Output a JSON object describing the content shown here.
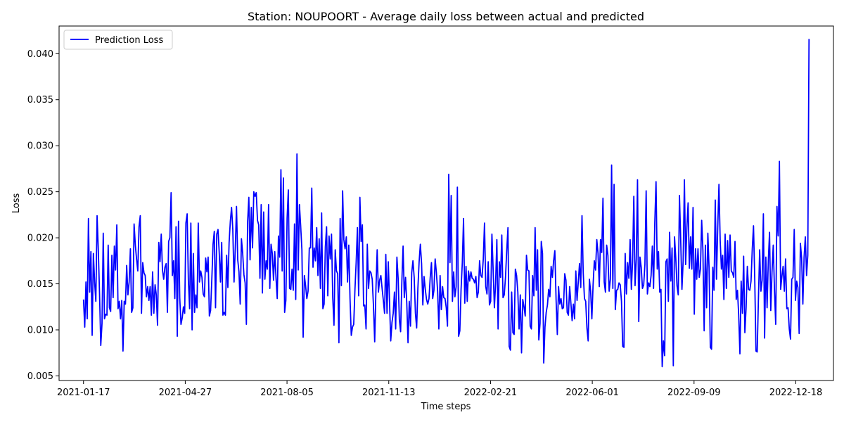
{
  "chart_data": {
    "type": "line",
    "title": "Station: NOUPOORT - Average daily loss between actual and predicted",
    "xlabel": "Time steps",
    "ylabel": "Loss",
    "x_start": "2021-01-17",
    "x_end": "2022-12-31",
    "xlim": [
      "2020-12-24",
      "2023-01-24"
    ],
    "ylim": [
      0.0045,
      0.043
    ],
    "x_ticks": [
      "2021-01-17",
      "2021-04-27",
      "2021-08-05",
      "2021-11-13",
      "2022-02-21",
      "2022-06-01",
      "2022-09-09",
      "2022-12-18"
    ],
    "y_ticks": [
      "0.005",
      "0.010",
      "0.015",
      "0.020",
      "0.025",
      "0.030",
      "0.035",
      "0.040"
    ],
    "grid": false,
    "legend": {
      "position": "top-left",
      "entries": [
        "Prediction Loss"
      ]
    },
    "series": [
      {
        "name": "Prediction Loss",
        "color": "#0000ff",
        "values": [
          0.0133,
          0.0103,
          0.0152,
          0.0112,
          0.0221,
          0.0141,
          0.0185,
          0.0094,
          0.0183,
          0.0152,
          0.0131,
          0.0224,
          0.0187,
          0.0139,
          0.0083,
          0.0107,
          0.0205,
          0.0112,
          0.0117,
          0.0116,
          0.0192,
          0.0124,
          0.012,
          0.0181,
          0.0135,
          0.0191,
          0.0165,
          0.0214,
          0.0123,
          0.0131,
          0.0112,
          0.0132,
          0.0077,
          0.0131,
          0.0128,
          0.017,
          0.0138,
          0.0152,
          0.0188,
          0.0119,
          0.0124,
          0.0215,
          0.0192,
          0.0177,
          0.0164,
          0.0212,
          0.0224,
          0.0118,
          0.0173,
          0.0162,
          0.0159,
          0.0136,
          0.0147,
          0.0132,
          0.0147,
          0.0116,
          0.0163,
          0.0118,
          0.0149,
          0.0138,
          0.0105,
          0.0195,
          0.0174,
          0.0204,
          0.0165,
          0.0155,
          0.0168,
          0.0172,
          0.0119,
          0.0196,
          0.02,
          0.0249,
          0.0159,
          0.0175,
          0.0134,
          0.0212,
          0.0093,
          0.0218,
          0.0135,
          0.0106,
          0.0113,
          0.0125,
          0.0118,
          0.0216,
          0.0226,
          0.0154,
          0.0123,
          0.0216,
          0.01,
          0.0183,
          0.0119,
          0.0138,
          0.0124,
          0.0216,
          0.0152,
          0.0164,
          0.0157,
          0.0139,
          0.0136,
          0.0178,
          0.0163,
          0.0179,
          0.0115,
          0.0121,
          0.0155,
          0.0193,
          0.0207,
          0.0124,
          0.0204,
          0.0209,
          0.0184,
          0.0152,
          0.0195,
          0.0116,
          0.0119,
          0.0116,
          0.0181,
          0.0146,
          0.0195,
          0.0218,
          0.0233,
          0.0209,
          0.0152,
          0.0188,
          0.0234,
          0.0176,
          0.0163,
          0.0128,
          0.0199,
          0.0183,
          0.016,
          0.0151,
          0.0106,
          0.0217,
          0.0244,
          0.0176,
          0.0233,
          0.0189,
          0.025,
          0.0245,
          0.0249,
          0.0219,
          0.0214,
          0.0156,
          0.0236,
          0.014,
          0.0228,
          0.0155,
          0.0175,
          0.0166,
          0.0236,
          0.0145,
          0.0193,
          0.0183,
          0.0154,
          0.0185,
          0.0157,
          0.0134,
          0.0202,
          0.0179,
          0.0274,
          0.0164,
          0.0265,
          0.0119,
          0.0132,
          0.0221,
          0.0252,
          0.0145,
          0.0144,
          0.0166,
          0.0143,
          0.0215,
          0.0133,
          0.0291,
          0.0165,
          0.0236,
          0.0213,
          0.0187,
          0.0092,
          0.0159,
          0.0148,
          0.0134,
          0.0142,
          0.0189,
          0.0189,
          0.0254,
          0.0168,
          0.0189,
          0.0175,
          0.0211,
          0.0159,
          0.0199,
          0.0145,
          0.0227,
          0.0123,
          0.0128,
          0.019,
          0.0212,
          0.0137,
          0.0202,
          0.0177,
          0.0204,
          0.0135,
          0.0105,
          0.0187,
          0.0164,
          0.0161,
          0.0086,
          0.0221,
          0.0148,
          0.0251,
          0.0198,
          0.0188,
          0.0201,
          0.0152,
          0.0192,
          0.0134,
          0.0094,
          0.0103,
          0.0106,
          0.0144,
          0.0174,
          0.0211,
          0.0137,
          0.0244,
          0.0196,
          0.0214,
          0.0126,
          0.0127,
          0.0101,
          0.0193,
          0.0145,
          0.0164,
          0.0162,
          0.0155,
          0.0126,
          0.0087,
          0.0144,
          0.0187,
          0.0141,
          0.0154,
          0.0159,
          0.0145,
          0.0132,
          0.0118,
          0.0182,
          0.0118,
          0.0174,
          0.0131,
          0.0088,
          0.0108,
          0.0118,
          0.0141,
          0.0101,
          0.0179,
          0.0156,
          0.0111,
          0.0098,
          0.0152,
          0.0191,
          0.0135,
          0.0157,
          0.0129,
          0.0086,
          0.0131,
          0.0104,
          0.0162,
          0.0175,
          0.0157,
          0.0118,
          0.0102,
          0.0145,
          0.0174,
          0.0193,
          0.0172,
          0.0127,
          0.0158,
          0.0144,
          0.0133,
          0.0128,
          0.0134,
          0.0157,
          0.0173,
          0.0134,
          0.0143,
          0.0177,
          0.0162,
          0.0142,
          0.0101,
          0.0159,
          0.0122,
          0.0147,
          0.0135,
          0.0134,
          0.0124,
          0.0104,
          0.0269,
          0.0173,
          0.0246,
          0.0131,
          0.0163,
          0.0136,
          0.0147,
          0.0255,
          0.0093,
          0.0099,
          0.0144,
          0.0173,
          0.0221,
          0.0129,
          0.0169,
          0.0131,
          0.0164,
          0.0153,
          0.0163,
          0.0156,
          0.0155,
          0.0151,
          0.0158,
          0.0135,
          0.0141,
          0.0175,
          0.0159,
          0.0157,
          0.0177,
          0.0216,
          0.0147,
          0.0139,
          0.0174,
          0.0127,
          0.0131,
          0.0204,
          0.0165,
          0.0124,
          0.0151,
          0.0198,
          0.0101,
          0.0174,
          0.0157,
          0.0203,
          0.0135,
          0.0138,
          0.0157,
          0.0186,
          0.0211,
          0.0082,
          0.0078,
          0.0141,
          0.0097,
          0.0095,
          0.0166,
          0.0159,
          0.0141,
          0.0101,
          0.0138,
          0.0075,
          0.0133,
          0.0125,
          0.0115,
          0.0181,
          0.0165,
          0.0164,
          0.0104,
          0.0101,
          0.0159,
          0.0137,
          0.0211,
          0.0143,
          0.0187,
          0.0089,
          0.0107,
          0.0196,
          0.0183,
          0.0064,
          0.0103,
          0.0119,
          0.0127,
          0.0144,
          0.0136,
          0.0169,
          0.0157,
          0.0175,
          0.0186,
          0.0133,
          0.0095,
          0.0147,
          0.0128,
          0.0134,
          0.0123,
          0.0124,
          0.0161,
          0.0154,
          0.0119,
          0.0116,
          0.0147,
          0.0129,
          0.011,
          0.0128,
          0.0112,
          0.0164,
          0.0132,
          0.0152,
          0.0172,
          0.0146,
          0.0224,
          0.0162,
          0.0134,
          0.0131,
          0.0102,
          0.0088,
          0.0155,
          0.0142,
          0.0112,
          0.0149,
          0.0175,
          0.0165,
          0.0198,
          0.0183,
          0.0147,
          0.0198,
          0.0184,
          0.0243,
          0.0152,
          0.0141,
          0.0192,
          0.0181,
          0.0142,
          0.0155,
          0.0279,
          0.0145,
          0.0258,
          0.0122,
          0.0143,
          0.0144,
          0.0151,
          0.0149,
          0.0131,
          0.0082,
          0.0081,
          0.0183,
          0.0139,
          0.0173,
          0.0156,
          0.0198,
          0.0144,
          0.0174,
          0.0245,
          0.0148,
          0.0177,
          0.0263,
          0.0109,
          0.0179,
          0.0168,
          0.0145,
          0.0149,
          0.0171,
          0.0251,
          0.0139,
          0.0151,
          0.0147,
          0.0159,
          0.0191,
          0.0145,
          0.0216,
          0.0261,
          0.0166,
          0.0185,
          0.0141,
          0.0144,
          0.006,
          0.0088,
          0.0072,
          0.0174,
          0.0177,
          0.0131,
          0.0206,
          0.0153,
          0.0189,
          0.0061,
          0.0201,
          0.0178,
          0.0148,
          0.0138,
          0.0246,
          0.0198,
          0.0144,
          0.0175,
          0.0263,
          0.0171,
          0.0211,
          0.0238,
          0.0167,
          0.0201,
          0.0166,
          0.0233,
          0.0117,
          0.0188,
          0.0155,
          0.0188,
          0.0157,
          0.0166,
          0.0219,
          0.0186,
          0.0099,
          0.0192,
          0.0124,
          0.0205,
          0.0167,
          0.0081,
          0.0079,
          0.0168,
          0.0143,
          0.0241,
          0.0155,
          0.0211,
          0.0258,
          0.0197,
          0.0166,
          0.0181,
          0.0133,
          0.0204,
          0.0145,
          0.0197,
          0.0157,
          0.0203,
          0.0164,
          0.0162,
          0.0157,
          0.0196,
          0.0133,
          0.0143,
          0.0116,
          0.0074,
          0.0153,
          0.0118,
          0.018,
          0.0097,
          0.0124,
          0.0169,
          0.0144,
          0.0143,
          0.0153,
          0.0188,
          0.0213,
          0.0156,
          0.0077,
          0.0076,
          0.0134,
          0.0187,
          0.0142,
          0.0154,
          0.0226,
          0.0091,
          0.0179,
          0.0124,
          0.0175,
          0.0206,
          0.0121,
          0.0163,
          0.0192,
          0.0143,
          0.0106,
          0.0234,
          0.0202,
          0.0283,
          0.0144,
          0.0158,
          0.0169,
          0.0142,
          0.0177,
          0.0123,
          0.0124,
          0.0101,
          0.009,
          0.0155,
          0.0157,
          0.0209,
          0.0132,
          0.0153,
          0.0146,
          0.0096,
          0.0194,
          0.0178,
          0.0128,
          0.0179,
          0.0201,
          0.0159,
          0.0181,
          0.0416
        ]
      }
    ]
  }
}
